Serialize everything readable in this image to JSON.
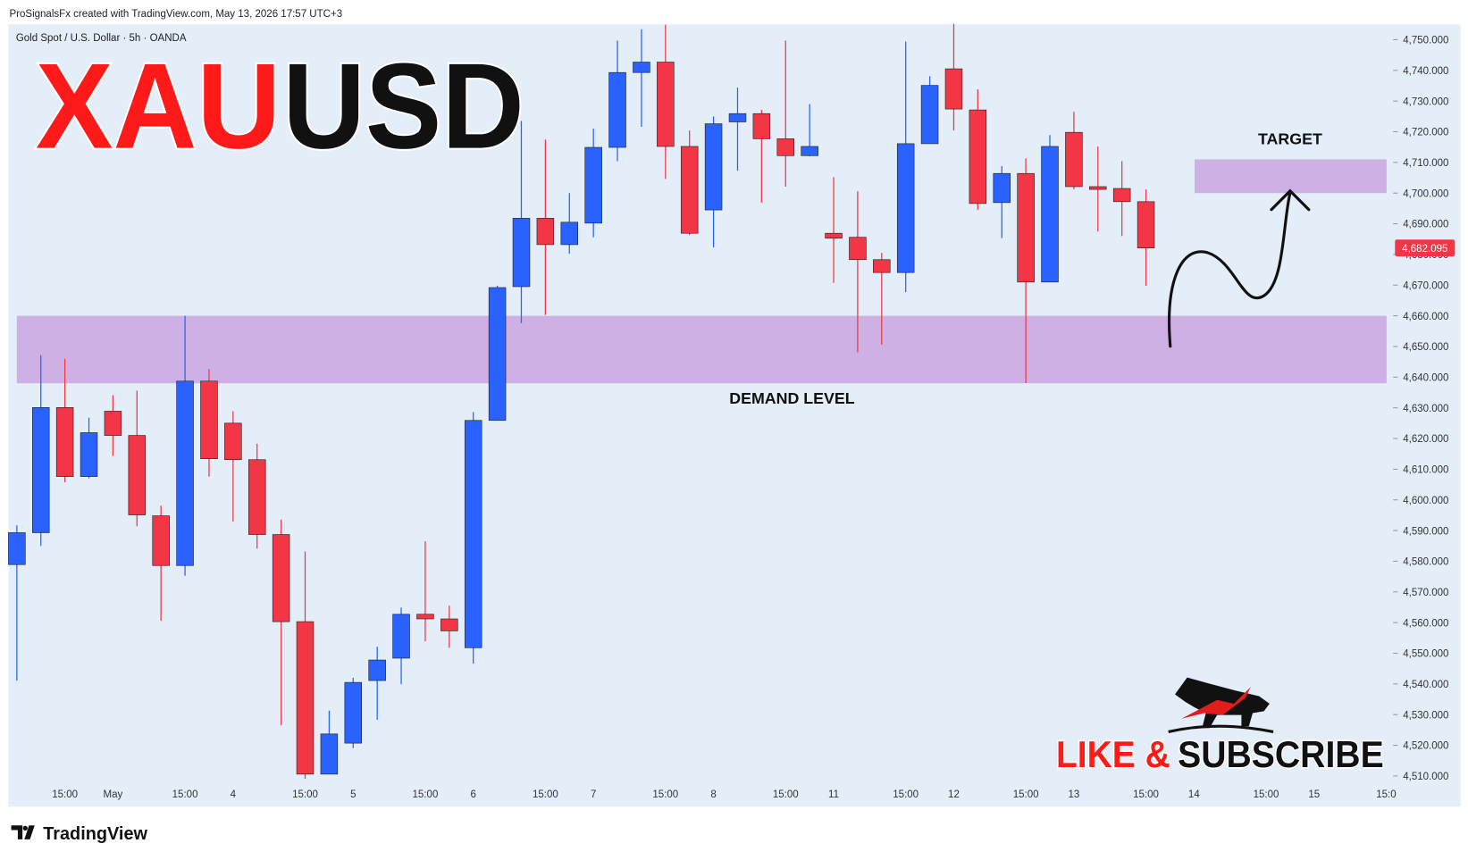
{
  "header": {
    "attribution": "ProSignalsFx created with TradingView.com, May 13, 2026 17:57 UTC+3",
    "symbol": "Gold Spot / U.S. Dollar · 5h · OANDA"
  },
  "chart_data": {
    "type": "candlestick",
    "title_parts": [
      {
        "text": "XAU",
        "color": "#ff1a1a"
      },
      {
        "text": "USD",
        "color": "#111111"
      }
    ],
    "categories": [
      null,
      null,
      "15:00",
      null,
      "May",
      null,
      null,
      "15:00",
      null,
      "4",
      null,
      null,
      "15:00",
      null,
      "5",
      null,
      null,
      "15:00",
      null,
      "6",
      null,
      null,
      "15:00",
      null,
      "7",
      null,
      null,
      "15:00",
      null,
      "8",
      null,
      null,
      "15:00",
      null,
      "11",
      null,
      null,
      "15:00",
      null,
      "12",
      null,
      null,
      "15:00",
      null,
      "13",
      null,
      null,
      "15:00",
      null,
      "14",
      null,
      null,
      "15:00",
      null,
      "15",
      null,
      null,
      "15:0"
    ],
    "open": [
      4578.9,
      4589.3,
      4630.1,
      4607.6,
      4628.9,
      4621.0,
      4594.8,
      4578.6,
      4638.7,
      4625.0,
      4613.1,
      4588.7,
      4560.3,
      4510.6,
      4520.7,
      4541.1,
      4548.4,
      4562.7,
      4561.2,
      4551.8,
      4625.9,
      4669.5,
      4691.8,
      4683.2,
      4690.2,
      4714.9,
      4739.3,
      4742.7,
      4715.2,
      4694.5,
      4723.2,
      4725.9,
      4717.7,
      4712.2,
      4686.9,
      4685.6,
      4678.3,
      4674.1,
      4716.1,
      4740.5,
      4727.1,
      4696.9,
      4706.4,
      4671.0,
      4719.8,
      4702.1,
      4701.5,
      4697.2,
      null,
      null,
      null,
      null,
      null,
      null,
      null,
      null,
      null,
      null
    ],
    "high": [
      4591.7,
      4647.2,
      4646.0,
      4626.8,
      4634.1,
      4635.6,
      4598.1,
      4660.0,
      4642.6,
      4628.9,
      4618.3,
      4593.6,
      4583.2,
      4531.3,
      4542.0,
      4552.1,
      4564.9,
      4586.5,
      4565.5,
      4628.6,
      4669.8,
      4723.5,
      4717.4,
      4700.0,
      4721.0,
      4749.7,
      4753.4,
      4754.9,
      4720.4,
      4725.0,
      4734.4,
      4727.1,
      4749.7,
      4729.0,
      4705.2,
      4700.6,
      4680.5,
      4749.4,
      4738.1,
      4755.2,
      4733.8,
      4708.8,
      4711.3,
      4718.9,
      4726.5,
      4715.2,
      4710.4,
      4701.2,
      null,
      null,
      null,
      null,
      null,
      null,
      null,
      null,
      null,
      null
    ],
    "low": [
      4541.1,
      4585.0,
      4605.7,
      4607.0,
      4614.3,
      4591.4,
      4560.6,
      4575.3,
      4607.6,
      4592.9,
      4584.1,
      4526.5,
      4509.1,
      4510.6,
      4519.1,
      4528.3,
      4539.9,
      4553.9,
      4551.8,
      4546.6,
      4625.9,
      4657.6,
      4660.3,
      4680.2,
      4685.6,
      4710.4,
      4721.6,
      4704.6,
      4686.3,
      4682.3,
      4707.3,
      4696.9,
      4702.1,
      4712.0,
      4670.7,
      4648.1,
      4650.6,
      4667.7,
      4716.1,
      4720.4,
      4694.5,
      4685.3,
      4638.1,
      4671.0,
      4701.2,
      4687.5,
      4686.0,
      4669.8,
      null,
      null,
      null,
      null,
      null,
      null,
      null,
      null,
      null,
      null
    ],
    "close": [
      4589.3,
      4630.1,
      4607.6,
      4621.9,
      4621.0,
      4595.1,
      4578.6,
      4638.7,
      4613.4,
      4613.1,
      4588.7,
      4560.3,
      4510.6,
      4523.7,
      4540.5,
      4547.8,
      4562.7,
      4561.2,
      4557.3,
      4625.9,
      4669.2,
      4691.8,
      4683.2,
      4690.5,
      4714.9,
      4739.3,
      4742.7,
      4715.2,
      4686.9,
      4722.6,
      4725.9,
      4717.7,
      4712.2,
      4715.2,
      4685.3,
      4678.3,
      4674.1,
      4716.1,
      4735.1,
      4727.4,
      4696.6,
      4706.4,
      4671.0,
      4715.2,
      4702.1,
      4701.2,
      4697.2,
      4682.1,
      null,
      null,
      null,
      null,
      null,
      null,
      null,
      null,
      null,
      null
    ],
    "up_color": "#2962ff",
    "down_color": "#f23645",
    "ylim": [
      4500,
      4755
    ],
    "yticks": [
      {
        "value": 4510,
        "label": "4,510.000"
      },
      {
        "value": 4520,
        "label": "4,520.000"
      },
      {
        "value": 4530,
        "label": "4,530.000"
      },
      {
        "value": 4540,
        "label": "4,540.000"
      },
      {
        "value": 4550,
        "label": "4,550.000"
      },
      {
        "value": 4560,
        "label": "4,560.000"
      },
      {
        "value": 4570,
        "label": "4,570.000"
      },
      {
        "value": 4580,
        "label": "4,580.000"
      },
      {
        "value": 4590,
        "label": "4,590.000"
      },
      {
        "value": 4600,
        "label": "4,600.000"
      },
      {
        "value": 4610,
        "label": "4,610.000"
      },
      {
        "value": 4620,
        "label": "4,620.000"
      },
      {
        "value": 4630,
        "label": "4,630.000"
      },
      {
        "value": 4640,
        "label": "4,640.000"
      },
      {
        "value": 4650,
        "label": "4,650.000"
      },
      {
        "value": 4660,
        "label": "4,660.000"
      },
      {
        "value": 4670,
        "label": "4,670.000"
      },
      {
        "value": 4680,
        "label": "4,680.000"
      },
      {
        "value": 4690,
        "label": "4,690.000"
      },
      {
        "value": 4700,
        "label": "4,700.000"
      },
      {
        "value": 4710,
        "label": "4,710.000"
      },
      {
        "value": 4720,
        "label": "4,720.000"
      },
      {
        "value": 4730,
        "label": "4,730.000"
      },
      {
        "value": 4740,
        "label": "4,740.000"
      },
      {
        "value": 4750,
        "label": "4,750.000"
      }
    ],
    "last_price": {
      "value": 4682.095,
      "label": "4,682.095"
    },
    "zones": [
      {
        "label": "DEMAND LEVEL",
        "low": 4638,
        "high": 4660,
        "color": "#cba9e2"
      },
      {
        "label": "TARGET",
        "low": 4700,
        "high": 4711,
        "color": "#cba9e2"
      }
    ],
    "promo_parts": [
      {
        "text": "LIKE &",
        "color": "#ff1a1a"
      },
      {
        "text": "SUBSCRIBE",
        "color": "#111111"
      }
    ]
  },
  "footer": {
    "brand": "TradingView"
  }
}
